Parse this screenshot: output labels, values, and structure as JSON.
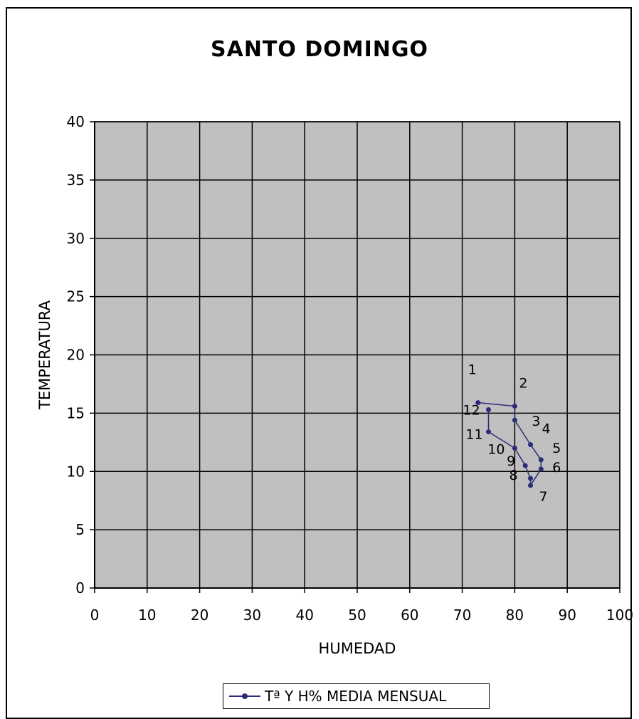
{
  "chart_data": {
    "type": "line",
    "title": "SANTO DOMINGO",
    "xlabel": "HUMEDAD",
    "ylabel": "TEMPERATURA",
    "xlim": [
      0,
      100
    ],
    "ylim": [
      0,
      40
    ],
    "xticks": [
      0,
      10,
      20,
      30,
      40,
      50,
      60,
      70,
      80,
      90,
      100
    ],
    "yticks": [
      0,
      5,
      10,
      15,
      20,
      25,
      30,
      35,
      40
    ],
    "grid": true,
    "legend_position": "bottom",
    "series": [
      {
        "name": "Tª Y H% MEDIA MENSUAL",
        "color": "#2b2b7a",
        "points": [
          {
            "label": "1",
            "x": 73,
            "y": 15.9
          },
          {
            "label": "2",
            "x": 80,
            "y": 15.6
          },
          {
            "label": "3",
            "x": 80,
            "y": 14.4
          },
          {
            "label": "4",
            "x": 83,
            "y": 12.3
          },
          {
            "label": "5",
            "x": 85,
            "y": 11.0
          },
          {
            "label": "6",
            "x": 85,
            "y": 10.2
          },
          {
            "label": "7",
            "x": 83,
            "y": 8.8
          },
          {
            "label": "8",
            "x": 83,
            "y": 9.4
          },
          {
            "label": "9",
            "x": 82,
            "y": 10.5
          },
          {
            "label": "10",
            "x": 80,
            "y": 12.0
          },
          {
            "label": "11",
            "x": 75,
            "y": 13.4
          },
          {
            "label": "12",
            "x": 75,
            "y": 15.3
          }
        ]
      }
    ],
    "plot_background": "#c0c0c0",
    "grid_color": "#000000"
  }
}
